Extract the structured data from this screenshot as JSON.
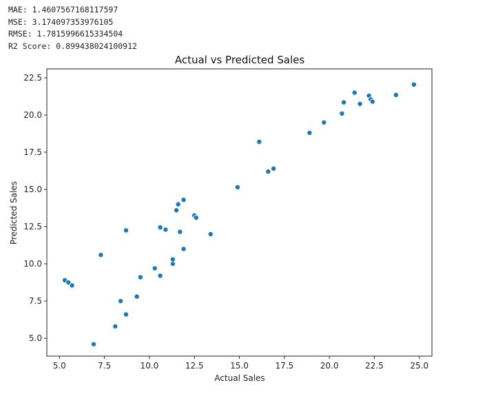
{
  "metrics": {
    "mae": "MAE: 1.4607567168117597",
    "mse": "MSE: 3.174097353976105",
    "rmse": "RMSE: 1.7815996615334504",
    "r2": "R2 Score: 0.899438024100912"
  },
  "chart_data": {
    "type": "scatter",
    "title": "Actual vs Predicted Sales",
    "xlabel": "Actual Sales",
    "ylabel": "Predicted Sales",
    "xlim": [
      4.3,
      25.7
    ],
    "ylim": [
      3.8,
      23.1
    ],
    "xticks": [
      5.0,
      7.5,
      10.0,
      12.5,
      15.0,
      17.5,
      20.0,
      22.5,
      25.0
    ],
    "xtick_labels": [
      "5.0",
      "7.5",
      "10.0",
      "12.5",
      "15.0",
      "17.5",
      "20.0",
      "22.5",
      "25.0"
    ],
    "yticks": [
      5.0,
      7.5,
      10.0,
      12.5,
      15.0,
      17.5,
      20.0,
      22.5
    ],
    "ytick_labels": [
      "5.0",
      "7.5",
      "10.0",
      "12.5",
      "15.0",
      "17.5",
      "20.0",
      "22.5"
    ],
    "grid": false,
    "marker_color": "#1f77b4",
    "points": [
      {
        "x": 5.3,
        "y": 8.9
      },
      {
        "x": 5.5,
        "y": 8.75
      },
      {
        "x": 5.7,
        "y": 8.55
      },
      {
        "x": 6.9,
        "y": 4.6
      },
      {
        "x": 7.3,
        "y": 10.6
      },
      {
        "x": 8.1,
        "y": 5.8
      },
      {
        "x": 8.4,
        "y": 7.5
      },
      {
        "x": 8.7,
        "y": 6.6
      },
      {
        "x": 8.7,
        "y": 12.25
      },
      {
        "x": 9.3,
        "y": 7.8
      },
      {
        "x": 9.5,
        "y": 9.1
      },
      {
        "x": 10.3,
        "y": 9.7
      },
      {
        "x": 10.6,
        "y": 9.2
      },
      {
        "x": 10.6,
        "y": 12.45
      },
      {
        "x": 10.9,
        "y": 12.3
      },
      {
        "x": 11.3,
        "y": 10.0
      },
      {
        "x": 11.3,
        "y": 10.3
      },
      {
        "x": 11.5,
        "y": 13.6
      },
      {
        "x": 11.6,
        "y": 14.0
      },
      {
        "x": 11.7,
        "y": 12.15
      },
      {
        "x": 11.9,
        "y": 14.3
      },
      {
        "x": 11.9,
        "y": 11.0
      },
      {
        "x": 12.5,
        "y": 13.25
      },
      {
        "x": 12.6,
        "y": 13.1
      },
      {
        "x": 13.4,
        "y": 12.0
      },
      {
        "x": 14.9,
        "y": 15.15
      },
      {
        "x": 16.1,
        "y": 18.2
      },
      {
        "x": 16.6,
        "y": 16.2
      },
      {
        "x": 16.9,
        "y": 16.4
      },
      {
        "x": 18.9,
        "y": 18.8
      },
      {
        "x": 19.7,
        "y": 19.5
      },
      {
        "x": 20.7,
        "y": 20.1
      },
      {
        "x": 20.8,
        "y": 20.85
      },
      {
        "x": 21.4,
        "y": 21.5
      },
      {
        "x": 21.7,
        "y": 20.75
      },
      {
        "x": 22.2,
        "y": 21.3
      },
      {
        "x": 22.3,
        "y": 21.05
      },
      {
        "x": 22.4,
        "y": 20.9
      },
      {
        "x": 23.7,
        "y": 21.35
      },
      {
        "x": 24.7,
        "y": 22.05
      }
    ]
  }
}
